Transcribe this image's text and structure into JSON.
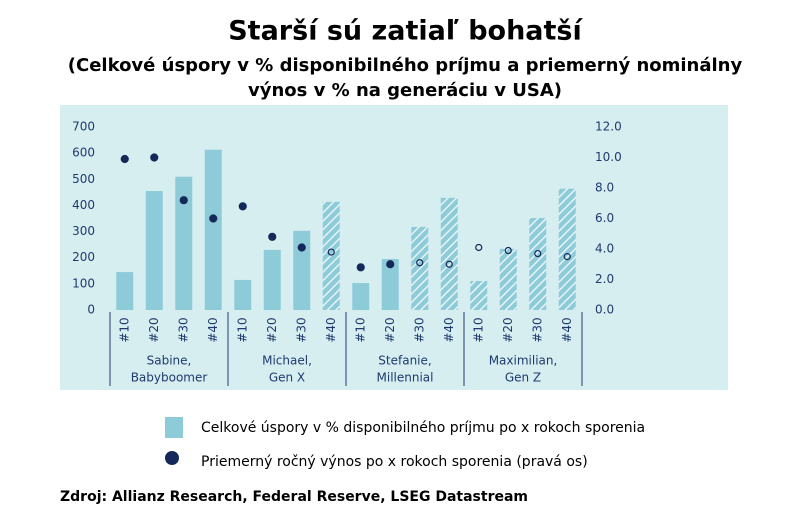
{
  "chart_data": {
    "type": "bar_dot",
    "title": "Starší sú zatiaľ bohatší",
    "subtitle": [
      "(Celkové úspory v % disponibilného príjmu a priemerný nominálny",
      "výnos v % na generáciu v USA)"
    ],
    "categories": [
      "#10",
      "#20",
      "#30",
      "#40",
      "#10",
      "#20",
      "#30",
      "#40",
      "#10",
      "#20",
      "#30",
      "#40",
      "#10",
      "#20",
      "#30",
      "#40"
    ],
    "groups": [
      [
        "Sabine,",
        "Babyboomer"
      ],
      [
        "Michael,",
        "Gen X"
      ],
      [
        "Stefanie,",
        "Millennial"
      ],
      [
        "Maximilian,",
        "Gen Z"
      ]
    ],
    "projected": [
      false,
      false,
      false,
      false,
      false,
      false,
      false,
      true,
      false,
      false,
      true,
      true,
      true,
      true,
      true,
      true
    ],
    "series": [
      {
        "name": "Celkové úspory v % disponibilného príjmu po x rokoch sporenia",
        "color": "#8ecbd9",
        "values": [
          145,
          455,
          510,
          613,
          115,
          230,
          303,
          414,
          103,
          195,
          318,
          429,
          111,
          234,
          352,
          464
        ]
      },
      {
        "name": "Priemerný ročný výnos po x rokoch sporenia (pravá os)",
        "color": "#14285a",
        "axis": "y2",
        "values": [
          9.9,
          10.0,
          7.2,
          6.0,
          6.8,
          4.8,
          4.1,
          3.8,
          2.8,
          3.0,
          3.1,
          3.0,
          4.1,
          3.9,
          3.7,
          3.5
        ]
      }
    ],
    "ylim": [
      0,
      700
    ],
    "yticks": [
      0,
      100,
      200,
      300,
      400,
      500,
      600,
      700
    ],
    "y2lim": [
      0,
      12
    ],
    "y2ticks": [
      {
        "value": 0,
        "label": "0.0"
      },
      {
        "value": 2,
        "label": "2.0"
      },
      {
        "value": 4,
        "label": "4.0"
      },
      {
        "value": 6,
        "label": "6.0"
      },
      {
        "value": 8,
        "label": "8.0"
      },
      {
        "value": 10,
        "label": "10.0"
      },
      {
        "value": 12,
        "label": "12.0"
      }
    ],
    "source": "Zdroj: Allianz Research, Federal Reserve, LSEG Datastream"
  }
}
